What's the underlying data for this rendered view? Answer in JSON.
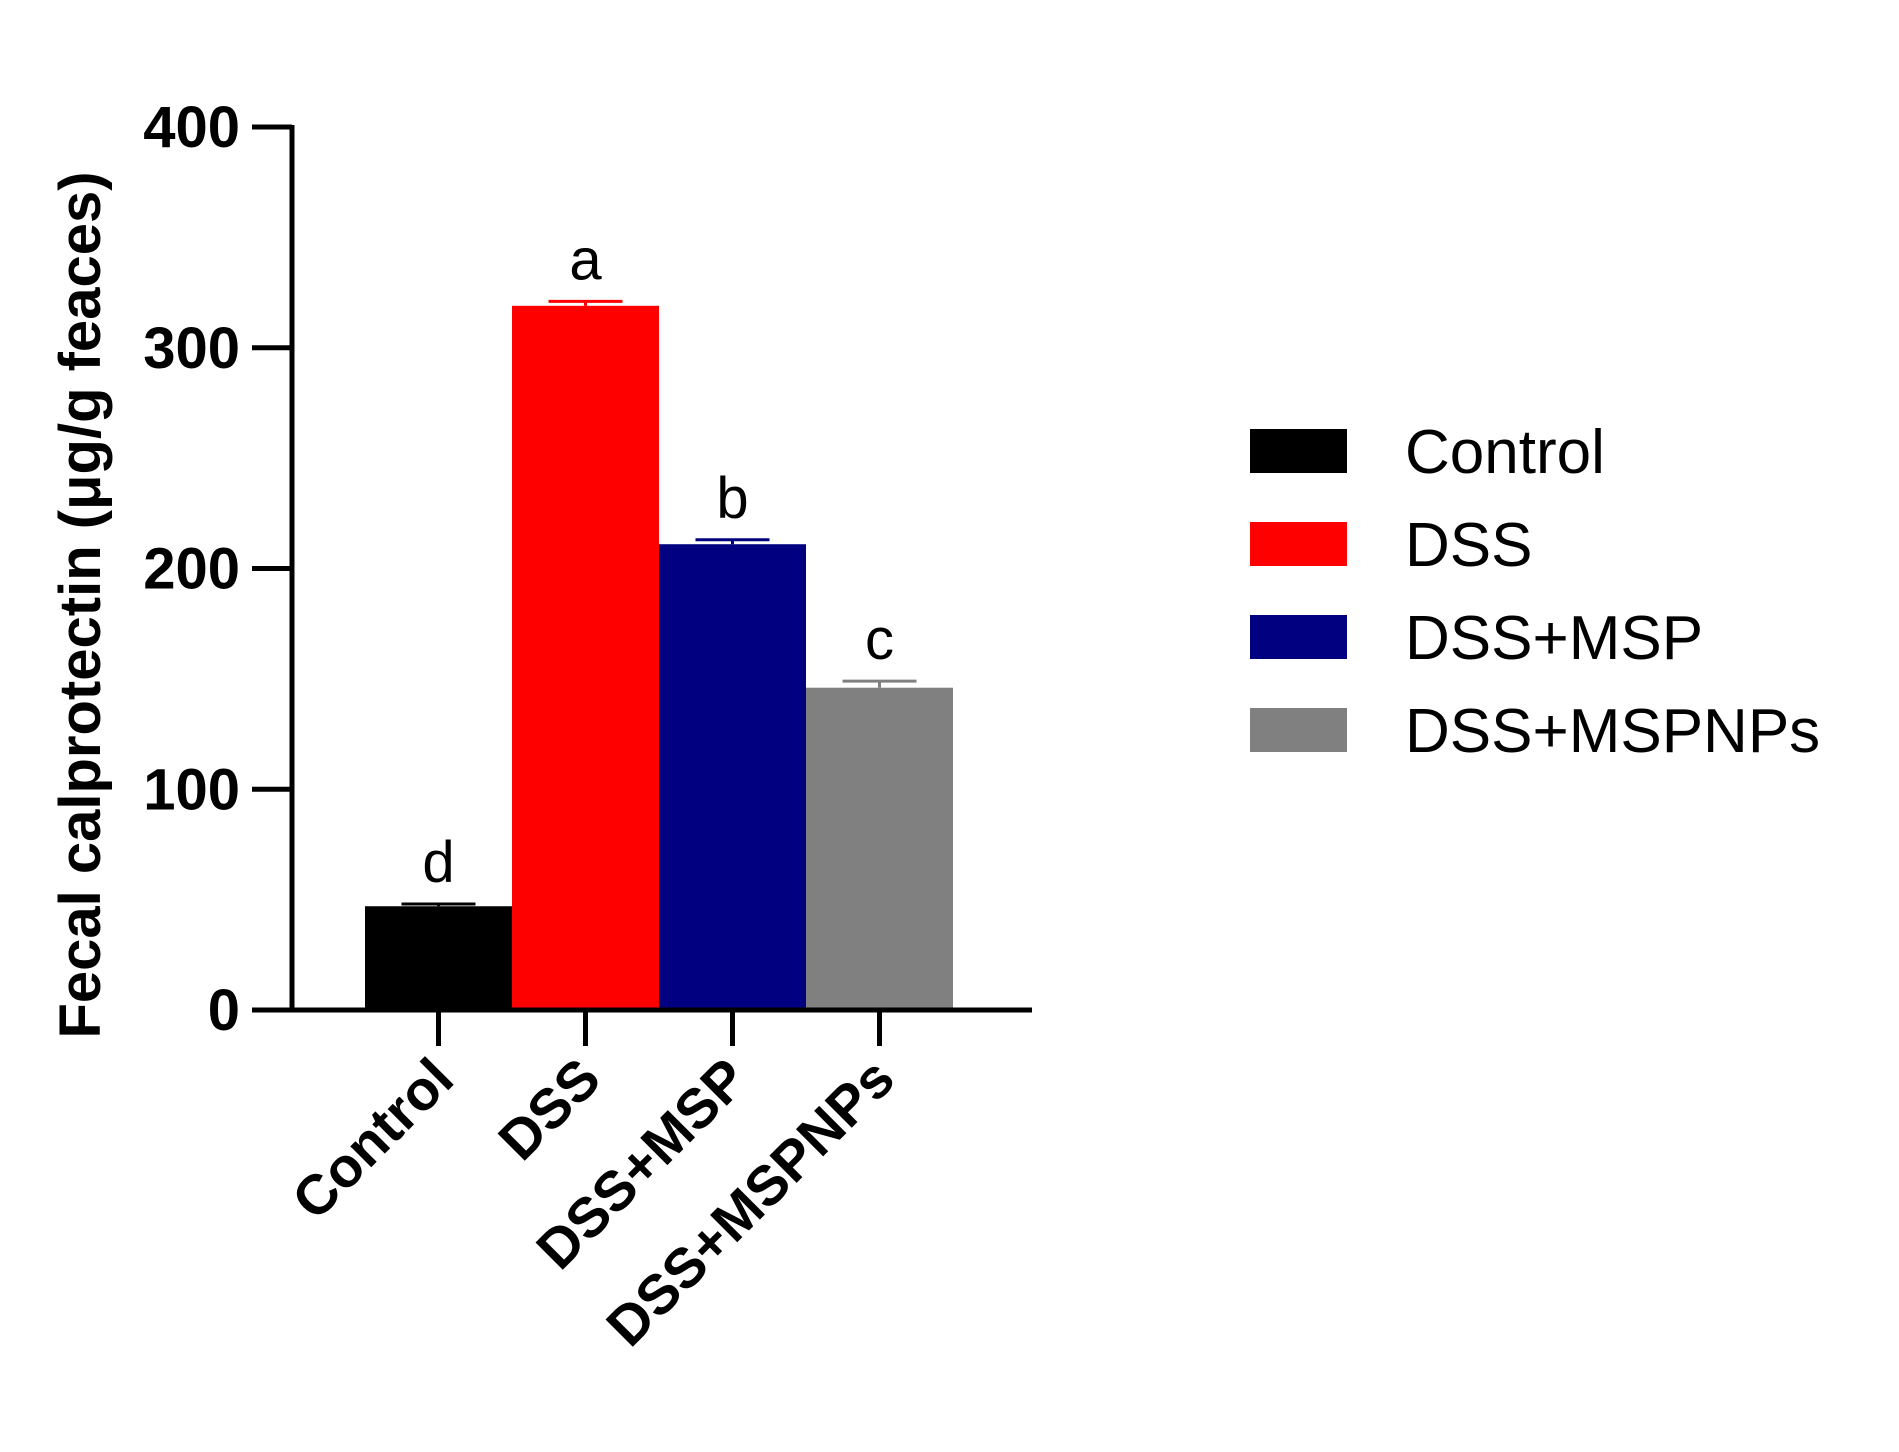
{
  "chart_data": {
    "type": "bar",
    "title": "",
    "xlabel": "",
    "ylabel": "Fecal calprotectin (μg/g feaces)",
    "ylim": [
      0,
      400
    ],
    "yticks": [
      0,
      100,
      200,
      300,
      400
    ],
    "categories": [
      "Control",
      "DSS",
      "DSS+MSP",
      "DSS+MSPNPs"
    ],
    "values": [
      47,
      319,
      211,
      146
    ],
    "errors": [
      1,
      2,
      2,
      3
    ],
    "significance_letters": [
      "d",
      "a",
      "b",
      "c"
    ],
    "colors": [
      "#000000",
      "#ff0000",
      "#000080",
      "#808080"
    ],
    "legend": {
      "placement": "right",
      "entries": [
        "Control",
        "DSS",
        "DSS+MSP",
        "DSS+MSPNPs"
      ]
    },
    "grid": false
  }
}
